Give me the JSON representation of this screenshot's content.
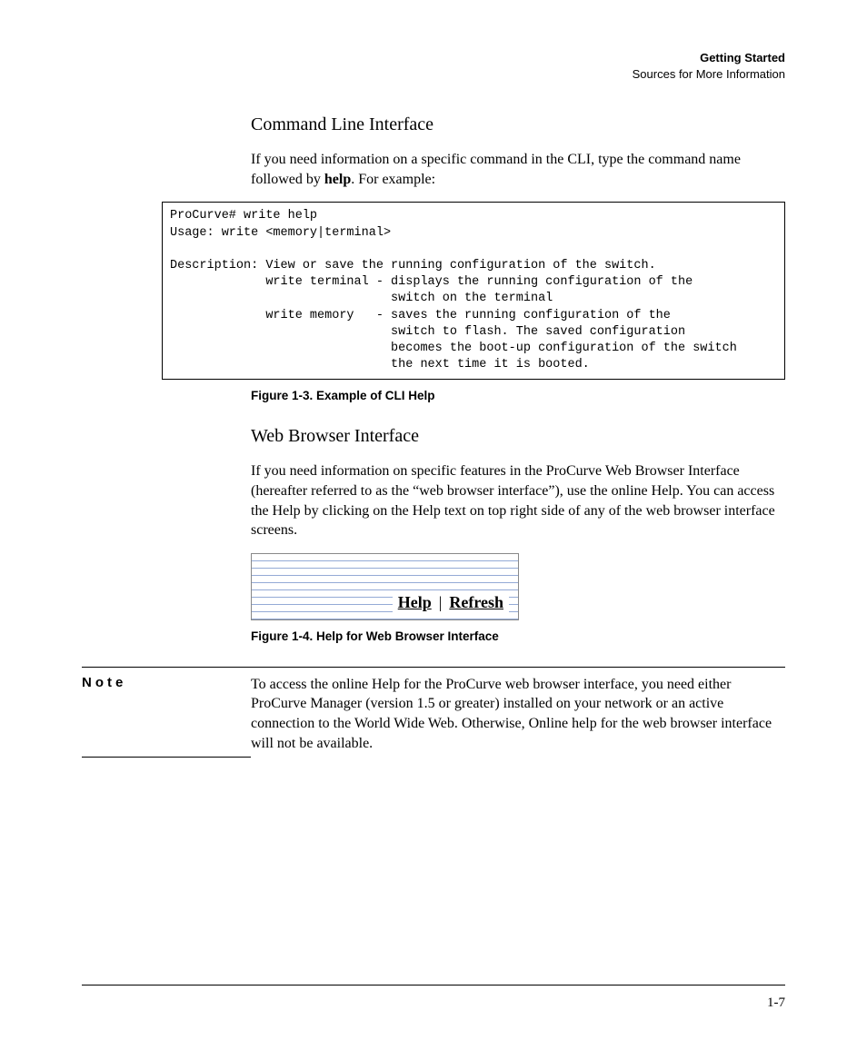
{
  "header": {
    "chapter": "Getting Started",
    "section": "Sources for More Information"
  },
  "section1": {
    "title": "Command Line Interface",
    "para_part1": "If you need information on a specific command in the CLI, type the command name followed by ",
    "bold": "help",
    "para_part2": ". For example:"
  },
  "terminal": {
    "text": "ProCurve# write help\nUsage: write <memory|terminal>\n\nDescription: View or save the running configuration of the switch.\n             write terminal - displays the running configuration of the\n                              switch on the terminal\n             write memory   - saves the running configuration of the\n                              switch to flash. The saved configuration\n                              becomes the boot-up configuration of the switch\n                              the next time it is booted."
  },
  "figure1": {
    "caption": "Figure 1-3.   Example of CLI Help"
  },
  "section2": {
    "title": "Web Browser Interface",
    "para": "If you need information on specific features in the ProCurve Web Browser Interface (hereafter referred to as the “web browser interface”), use the online Help. You can access the Help by clicking on the Help text on top right side of any of the web browser interface screens."
  },
  "browser": {
    "help_label": "Help",
    "separator": "|",
    "refresh_label": "Refresh"
  },
  "figure2": {
    "caption": "Figure 1-4.   Help for Web Browser Interface"
  },
  "note": {
    "label": "Note",
    "body": "To access the online Help for the ProCurve web browser interface, you need either ProCurve Manager (version 1.5 or greater) installed on your network or an active connection to the World Wide Web. Otherwise, Online help for the web browser interface will not be available."
  },
  "footer": {
    "page_number": "1-7"
  }
}
